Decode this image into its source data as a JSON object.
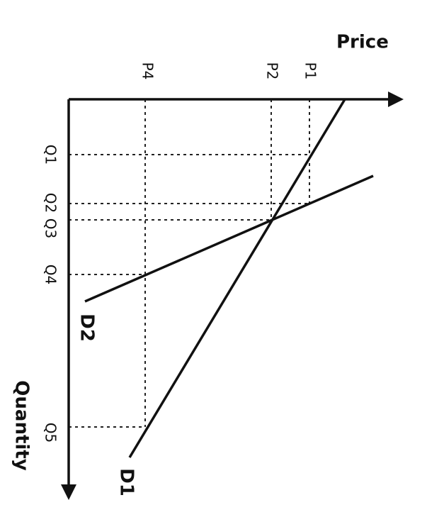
{
  "axes": {
    "price": "Price",
    "quantity": "Quantity"
  },
  "price_labels": [
    "P1",
    "P2",
    "P4"
  ],
  "quantity_labels": [
    "Q1",
    "Q2",
    "Q3",
    "Q4",
    "Q5"
  ],
  "curves": [
    "D1",
    "D2"
  ]
}
